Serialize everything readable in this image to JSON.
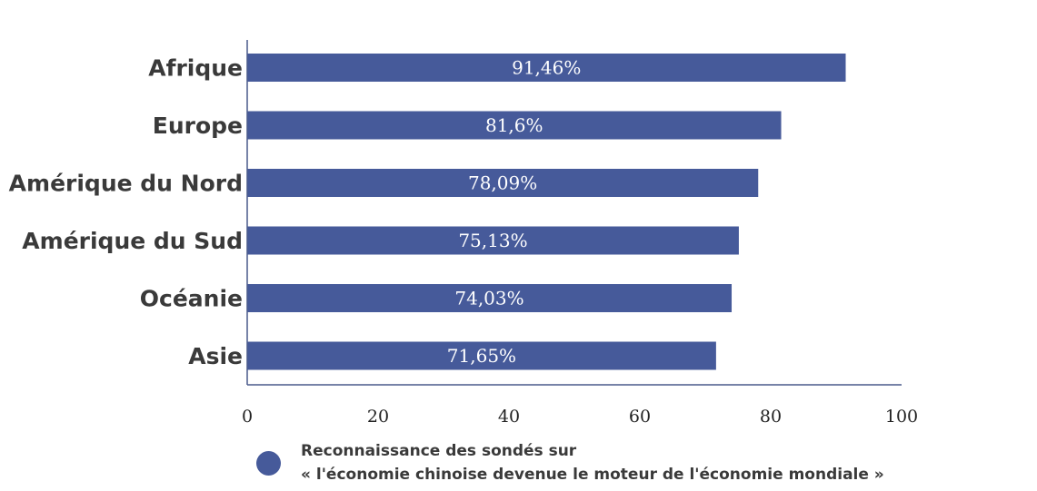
{
  "chart_data": {
    "type": "bar",
    "orientation": "horizontal",
    "categories": [
      "Afrique",
      "Europe",
      "Amérique du Nord",
      "Amérique du Sud",
      "Océanie",
      "Asie"
    ],
    "values": [
      91.46,
      81.6,
      78.09,
      75.13,
      74.03,
      71.65
    ],
    "value_labels": [
      "91,46%",
      "81,6%",
      "78,09%",
      "75,13%",
      "74,03%",
      "71,65%"
    ],
    "xlim": [
      0,
      100
    ],
    "xticks": [
      "0",
      "20",
      "40",
      "60",
      "80",
      "100"
    ],
    "grid": false,
    "legend": {
      "placement": "bottom",
      "lines": [
        "Reconnaissance des sondés sur",
        "« l'économie chinoise devenue le moteur de l'économie mondiale »"
      ]
    },
    "colors": {
      "bar": "#465a9a",
      "axis": "#4a5a8c"
    }
  }
}
